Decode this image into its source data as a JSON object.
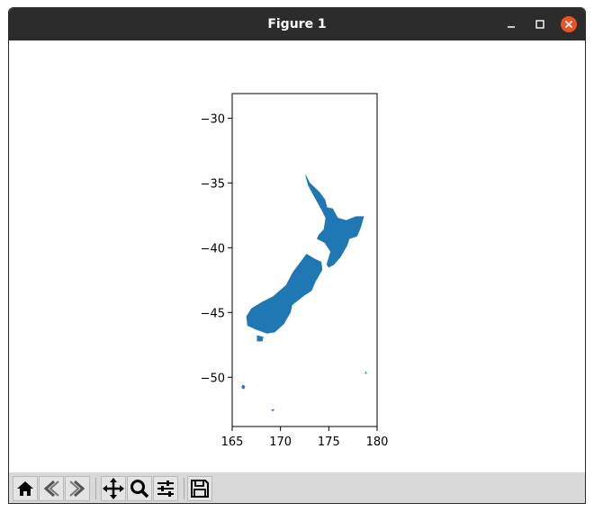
{
  "window": {
    "title": "Figure 1"
  },
  "window_controls": {
    "minimize": "minimize",
    "maximize": "maximize",
    "close": "close"
  },
  "toolbar": {
    "buttons": [
      {
        "name": "home",
        "icon": "home-icon"
      },
      {
        "name": "back",
        "icon": "back-arrow-icon"
      },
      {
        "name": "forward",
        "icon": "forward-arrow-icon"
      },
      {
        "name": "pan",
        "icon": "move-icon"
      },
      {
        "name": "zoom",
        "icon": "magnifier-icon"
      },
      {
        "name": "configure-subplots",
        "icon": "sliders-icon"
      },
      {
        "name": "save",
        "icon": "floppy-disk-icon"
      }
    ]
  },
  "colors": {
    "fill": "#1f77b4",
    "titlebar": "#2c2c2c",
    "close": "#e95420",
    "toolbar": "#d9d9d9"
  },
  "chart_data": {
    "type": "map",
    "title": "",
    "xlabel": "",
    "ylabel": "",
    "xlim": [
      165,
      180
    ],
    "ylim": [
      -53.8,
      -28.1
    ],
    "xticks": [
      165,
      170,
      175,
      180
    ],
    "yticks": [
      -30,
      -35,
      -40,
      -45,
      -50
    ],
    "xtick_labels": [
      "165",
      "170",
      "175",
      "180"
    ],
    "ytick_labels": [
      "−30",
      "−35",
      "−40",
      "−45",
      "−50"
    ],
    "grid": false,
    "series": [
      {
        "polygon": [
          [
            172.6,
            -34.4
          ],
          [
            173.0,
            -35.0
          ],
          [
            174.0,
            -35.7
          ],
          [
            174.6,
            -36.3
          ],
          [
            174.8,
            -36.9
          ],
          [
            175.4,
            -37.0
          ],
          [
            175.9,
            -37.7
          ],
          [
            176.8,
            -37.9
          ],
          [
            177.8,
            -37.6
          ],
          [
            178.6,
            -37.6
          ],
          [
            178.3,
            -38.4
          ],
          [
            177.9,
            -39.1
          ],
          [
            177.1,
            -39.3
          ],
          [
            176.9,
            -39.8
          ],
          [
            176.2,
            -40.7
          ],
          [
            175.5,
            -41.3
          ],
          [
            175.0,
            -41.5
          ],
          [
            174.8,
            -41.3
          ],
          [
            175.2,
            -40.3
          ],
          [
            174.6,
            -39.6
          ],
          [
            173.8,
            -39.3
          ],
          [
            174.0,
            -39.0
          ],
          [
            174.5,
            -38.6
          ],
          [
            174.7,
            -37.7
          ],
          [
            174.3,
            -37.1
          ],
          [
            173.7,
            -36.3
          ],
          [
            172.9,
            -35.2
          ]
        ]
      },
      {
        "polygon": [
          [
            174.2,
            -41.1
          ],
          [
            173.6,
            -40.9
          ],
          [
            172.7,
            -40.5
          ],
          [
            172.1,
            -41.1
          ],
          [
            171.3,
            -41.9
          ],
          [
            170.6,
            -42.9
          ],
          [
            169.2,
            -43.8
          ],
          [
            168.1,
            -44.2
          ],
          [
            167.0,
            -44.7
          ],
          [
            166.5,
            -45.3
          ],
          [
            166.6,
            -46.0
          ],
          [
            167.5,
            -46.3
          ],
          [
            168.6,
            -46.6
          ],
          [
            169.4,
            -46.5
          ],
          [
            170.3,
            -45.9
          ],
          [
            171.0,
            -45.0
          ],
          [
            171.2,
            -44.4
          ],
          [
            172.4,
            -43.7
          ],
          [
            173.2,
            -43.3
          ],
          [
            173.6,
            -42.6
          ],
          [
            174.3,
            -41.7
          ]
        ]
      },
      {
        "polygon": [
          [
            167.6,
            -46.8
          ],
          [
            168.2,
            -46.9
          ],
          [
            168.1,
            -47.2
          ],
          [
            167.6,
            -47.2
          ]
        ]
      },
      {
        "polygon": [
          [
            166.1,
            -50.6
          ],
          [
            166.3,
            -50.7
          ],
          [
            166.2,
            -50.9
          ],
          [
            166.0,
            -50.8
          ]
        ]
      },
      {
        "polygon": [
          [
            169.1,
            -52.5
          ],
          [
            169.3,
            -52.5
          ],
          [
            169.2,
            -52.6
          ]
        ]
      },
      {
        "polygon": [
          [
            178.8,
            -49.6
          ],
          [
            178.9,
            -49.7
          ],
          [
            178.8,
            -49.7
          ]
        ]
      }
    ]
  }
}
